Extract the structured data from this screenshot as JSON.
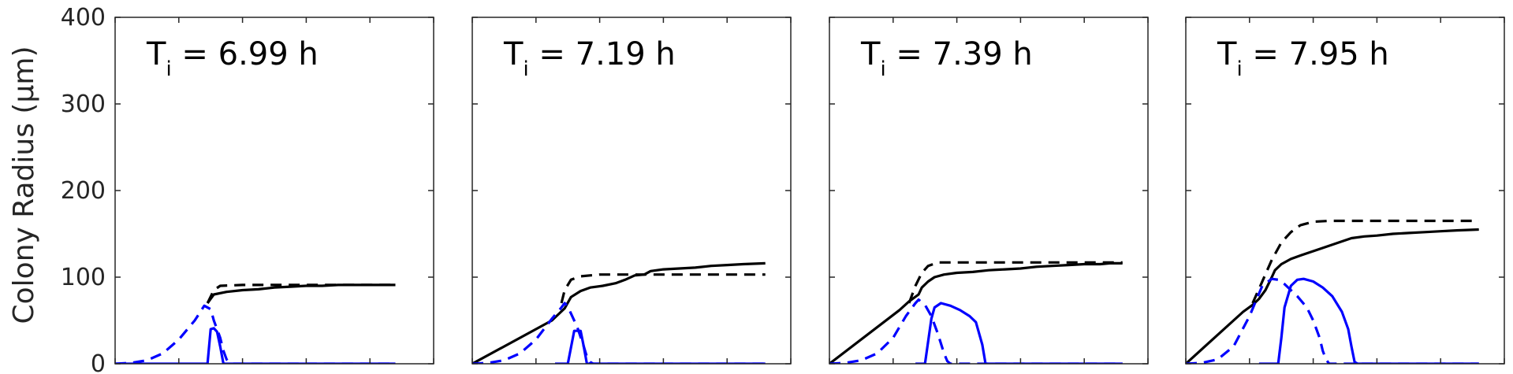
{
  "figure": {
    "ylabel": "Colony Radius (μm)"
  },
  "chart_data": [
    {
      "type": "line",
      "title_main": "T",
      "title_sub": "i",
      "title_rest": " = 6.99 h",
      "ylim": [
        0,
        400
      ],
      "yticks": [
        0,
        100,
        200,
        300,
        400
      ],
      "xlim": [
        0,
        100
      ],
      "xticks": [
        0,
        20,
        40,
        60,
        80,
        100
      ],
      "series": [
        {
          "style": "black-solid",
          "color": "#000000",
          "dash": false,
          "points": [
            [
              29,
              70
            ],
            [
              31,
              80
            ],
            [
              35,
              83
            ],
            [
              40,
              85
            ],
            [
              45,
              86
            ],
            [
              50,
              88
            ],
            [
              55,
              89
            ],
            [
              60,
              90
            ],
            [
              65,
              90
            ],
            [
              70,
              91
            ],
            [
              75,
              91
            ],
            [
              80,
              91
            ],
            [
              85,
              91
            ],
            [
              88,
              91
            ]
          ]
        },
        {
          "style": "black-dashed",
          "color": "#000000",
          "dash": true,
          "points": [
            [
              29,
              70
            ],
            [
              31,
              85
            ],
            [
              33,
              90
            ],
            [
              40,
              91
            ],
            [
              50,
              91
            ],
            [
              60,
              91
            ],
            [
              70,
              91
            ],
            [
              80,
              91
            ],
            [
              88,
              91
            ]
          ]
        },
        {
          "style": "blue-dashed",
          "color": "#0000ff",
          "dash": true,
          "points": [
            [
              0,
              0
            ],
            [
              5,
              1
            ],
            [
              10,
              4
            ],
            [
              15,
              12
            ],
            [
              20,
              28
            ],
            [
              25,
              50
            ],
            [
              28,
              67
            ],
            [
              30,
              63
            ],
            [
              31,
              50
            ],
            [
              33,
              30
            ],
            [
              34,
              15
            ],
            [
              35,
              5
            ],
            [
              36,
              1
            ],
            [
              37,
              0
            ],
            [
              50,
              0
            ],
            [
              60,
              0
            ],
            [
              70,
              0
            ],
            [
              88,
              0
            ]
          ]
        },
        {
          "style": "blue-solid",
          "color": "#0000ff",
          "dash": false,
          "points": [
            [
              0,
              0
            ],
            [
              20,
              0
            ],
            [
              29,
              0
            ],
            [
              30,
              40
            ],
            [
              31,
              41
            ],
            [
              32,
              37
            ],
            [
              33,
              20
            ],
            [
              34,
              0
            ],
            [
              40,
              0
            ],
            [
              60,
              0
            ],
            [
              88,
              0
            ]
          ]
        }
      ]
    },
    {
      "type": "line",
      "title_main": "T",
      "title_sub": "i",
      "title_rest": " = 7.19 h",
      "ylim": [
        0,
        400
      ],
      "yticks": [
        0,
        100,
        200,
        300,
        400
      ],
      "xlim": [
        0,
        100
      ],
      "xticks": [
        0,
        20,
        40,
        60,
        80,
        100
      ],
      "series": [
        {
          "style": "black-solid",
          "color": "#000000",
          "dash": false,
          "points": [
            [
              0,
              0
            ],
            [
              25,
              50
            ],
            [
              29,
              64
            ],
            [
              31,
              77
            ],
            [
              34,
              84
            ],
            [
              37,
              88
            ],
            [
              41,
              90
            ],
            [
              45,
              93
            ],
            [
              48,
              97
            ],
            [
              51,
              102
            ],
            [
              54,
              103
            ],
            [
              56,
              107
            ],
            [
              60,
              109
            ],
            [
              65,
              110
            ],
            [
              70,
              111
            ],
            [
              75,
              113
            ],
            [
              80,
              114
            ],
            [
              85,
              115
            ],
            [
              92,
              116
            ]
          ]
        },
        {
          "style": "black-dashed",
          "color": "#000000",
          "dash": true,
          "points": [
            [
              28,
              70
            ],
            [
              29,
              85
            ],
            [
              31,
              97
            ],
            [
              34,
              101
            ],
            [
              40,
              103
            ],
            [
              50,
              103
            ],
            [
              60,
              103
            ],
            [
              70,
              103
            ],
            [
              80,
              103
            ],
            [
              92,
              103
            ]
          ]
        },
        {
          "style": "blue-dashed",
          "color": "#0000ff",
          "dash": true,
          "points": [
            [
              0,
              0
            ],
            [
              5,
              1
            ],
            [
              10,
              4
            ],
            [
              15,
              12
            ],
            [
              20,
              28
            ],
            [
              25,
              52
            ],
            [
              28,
              65
            ],
            [
              29,
              70
            ],
            [
              30,
              66
            ],
            [
              31,
              58
            ],
            [
              33,
              42
            ],
            [
              35,
              20
            ],
            [
              36,
              8
            ],
            [
              37,
              2
            ],
            [
              38,
              0
            ],
            [
              50,
              0
            ],
            [
              70,
              0
            ],
            [
              92,
              0
            ]
          ]
        },
        {
          "style": "blue-solid",
          "color": "#0000ff",
          "dash": false,
          "points": [
            [
              26,
              0
            ],
            [
              30,
              0
            ],
            [
              32,
              38
            ],
            [
              34,
              38
            ],
            [
              35,
              20
            ],
            [
              36,
              0
            ],
            [
              40,
              0
            ],
            [
              60,
              0
            ],
            [
              92,
              0
            ]
          ]
        }
      ]
    },
    {
      "type": "line",
      "title_main": "T",
      "title_sub": "i",
      "title_rest": " = 7.39 h",
      "ylim": [
        0,
        400
      ],
      "yticks": [
        0,
        100,
        200,
        300,
        400
      ],
      "xlim": [
        0,
        100
      ],
      "xticks": [
        0,
        20,
        40,
        60,
        80,
        100
      ],
      "series": [
        {
          "style": "black-solid",
          "color": "#000000",
          "dash": false,
          "points": [
            [
              0,
              0
            ],
            [
              22,
              62
            ],
            [
              25,
              72
            ],
            [
              28,
              80
            ],
            [
              29,
              88
            ],
            [
              31,
              95
            ],
            [
              33,
              100
            ],
            [
              36,
              103
            ],
            [
              40,
              105
            ],
            [
              45,
              106
            ],
            [
              50,
              108
            ],
            [
              55,
              109
            ],
            [
              60,
              110
            ],
            [
              65,
              112
            ],
            [
              70,
              113
            ],
            [
              75,
              114
            ],
            [
              80,
              115
            ],
            [
              85,
              115
            ],
            [
              88,
              116
            ],
            [
              92,
              116
            ]
          ]
        },
        {
          "style": "black-dashed",
          "color": "#000000",
          "dash": true,
          "points": [
            [
              25,
              70
            ],
            [
              27,
              90
            ],
            [
              29,
              105
            ],
            [
              31,
              113
            ],
            [
              34,
              117
            ],
            [
              40,
              117
            ],
            [
              50,
              117
            ],
            [
              60,
              117
            ],
            [
              70,
              117
            ],
            [
              80,
              117
            ],
            [
              92,
              117
            ]
          ]
        },
        {
          "style": "blue-dashed",
          "color": "#0000ff",
          "dash": true,
          "points": [
            [
              0,
              0
            ],
            [
              5,
              1
            ],
            [
              10,
              4
            ],
            [
              15,
              12
            ],
            [
              20,
              30
            ],
            [
              24,
              55
            ],
            [
              27,
              70
            ],
            [
              28,
              74
            ],
            [
              30,
              68
            ],
            [
              32,
              55
            ],
            [
              34,
              35
            ],
            [
              36,
              12
            ],
            [
              37,
              3
            ],
            [
              38,
              0
            ],
            [
              50,
              0
            ],
            [
              92,
              0
            ]
          ]
        },
        {
          "style": "blue-solid",
          "color": "#0000ff",
          "dash": false,
          "points": [
            [
              27,
              0
            ],
            [
              30,
              0
            ],
            [
              32,
              52
            ],
            [
              33,
              65
            ],
            [
              35,
              70
            ],
            [
              38,
              67
            ],
            [
              41,
              62
            ],
            [
              44,
              55
            ],
            [
              46,
              48
            ],
            [
              48,
              22
            ],
            [
              49,
              0
            ],
            [
              55,
              0
            ],
            [
              92,
              0
            ]
          ]
        }
      ]
    },
    {
      "type": "line",
      "title_main": "T",
      "title_sub": "i",
      "title_rest": " = 7.95 h",
      "ylim": [
        0,
        400
      ],
      "yticks": [
        0,
        100,
        200,
        300,
        400
      ],
      "xlim": [
        0,
        100
      ],
      "xticks": [
        0,
        20,
        40,
        60,
        80,
        100
      ],
      "series": [
        {
          "style": "black-solid",
          "color": "#000000",
          "dash": false,
          "points": [
            [
              0,
              0
            ],
            [
              18,
              60
            ],
            [
              21,
              68
            ],
            [
              23,
              75
            ],
            [
              25,
              85
            ],
            [
              27,
              100
            ],
            [
              28,
              108
            ],
            [
              30,
              115
            ],
            [
              33,
              121
            ],
            [
              36,
              125
            ],
            [
              40,
              130
            ],
            [
              44,
              135
            ],
            [
              48,
              140
            ],
            [
              52,
              145
            ],
            [
              56,
              147
            ],
            [
              60,
              148
            ],
            [
              65,
              150
            ],
            [
              70,
              151
            ],
            [
              75,
              152
            ],
            [
              80,
              153
            ],
            [
              85,
              154
            ],
            [
              92,
              155
            ]
          ]
        },
        {
          "style": "black-dashed",
          "color": "#000000",
          "dash": true,
          "points": [
            [
              21,
              70
            ],
            [
              24,
              95
            ],
            [
              27,
              120
            ],
            [
              30,
              140
            ],
            [
              33,
              152
            ],
            [
              36,
              160
            ],
            [
              40,
              164
            ],
            [
              45,
              165
            ],
            [
              55,
              165
            ],
            [
              65,
              165
            ],
            [
              75,
              165
            ],
            [
              85,
              165
            ],
            [
              92,
              165
            ]
          ]
        },
        {
          "style": "blue-dashed",
          "color": "#0000ff",
          "dash": true,
          "points": [
            [
              0,
              0
            ],
            [
              5,
              1
            ],
            [
              10,
              5
            ],
            [
              15,
              20
            ],
            [
              20,
              55
            ],
            [
              24,
              90
            ],
            [
              27,
              98
            ],
            [
              29,
              97
            ],
            [
              31,
              92
            ],
            [
              33,
              85
            ],
            [
              35,
              78
            ],
            [
              38,
              65
            ],
            [
              40,
              50
            ],
            [
              42,
              30
            ],
            [
              43,
              15
            ],
            [
              44,
              5
            ],
            [
              45,
              0
            ],
            [
              55,
              0
            ],
            [
              92,
              0
            ]
          ]
        },
        {
          "style": "blue-solid",
          "color": "#0000ff",
          "dash": false,
          "points": [
            [
              23,
              0
            ],
            [
              29,
              0
            ],
            [
              30,
              30
            ],
            [
              31,
              65
            ],
            [
              33,
              90
            ],
            [
              35,
              97
            ],
            [
              37,
              98
            ],
            [
              40,
              95
            ],
            [
              43,
              88
            ],
            [
              46,
              78
            ],
            [
              49,
              60
            ],
            [
              51,
              40
            ],
            [
              52,
              20
            ],
            [
              53,
              2
            ],
            [
              54,
              0
            ],
            [
              60,
              0
            ],
            [
              92,
              0
            ]
          ]
        }
      ]
    }
  ]
}
